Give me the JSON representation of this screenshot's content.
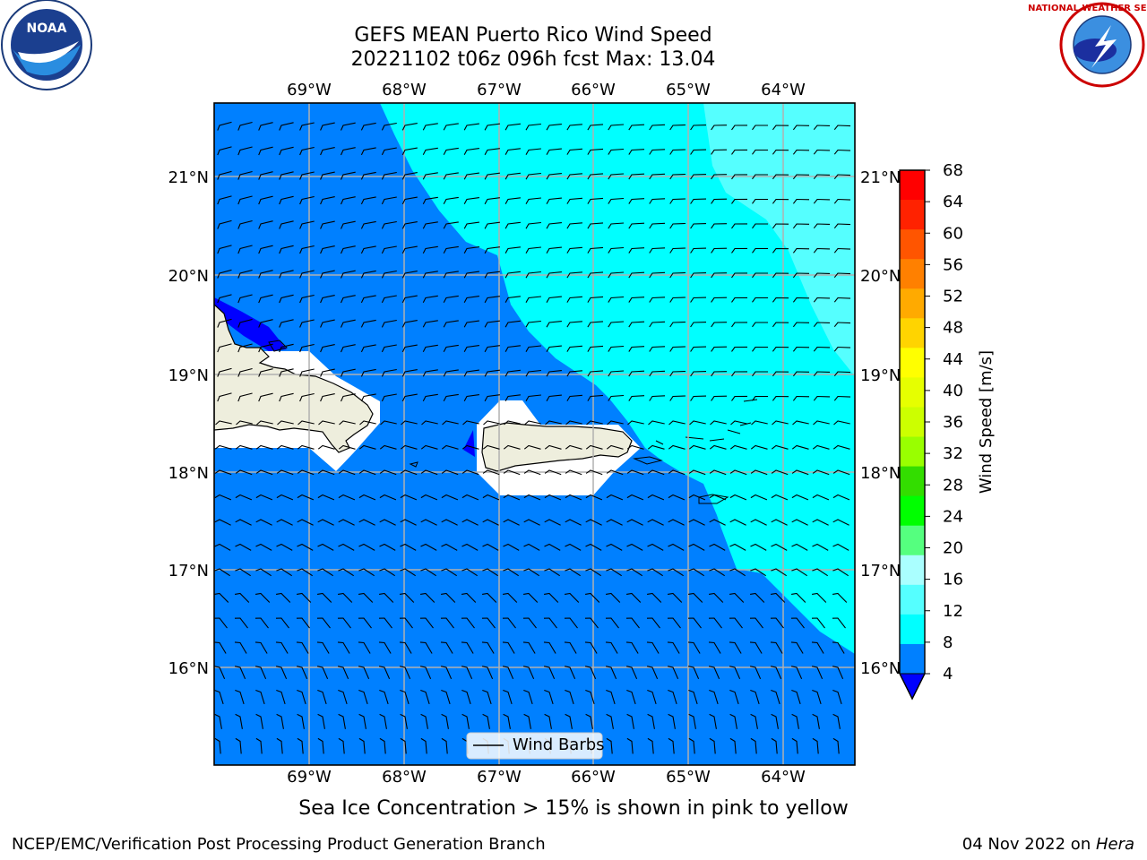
{
  "title_line1": "GEFS MEAN Puerto Rico Wind Speed",
  "title_line2": "20221102 t06z 096h fcst   Max: 13.04",
  "subtitle": "Sea Ice Concentration > 15% is shown in pink to yellow",
  "footer_left": "NCEP/EMC/Verification Post Processing Product Generation Branch",
  "footer_date": "04 Nov 2022 on ",
  "footer_machine": "Hera",
  "legend_label": "Wind Barbs",
  "colorbar": {
    "label": "Wind Speed [m/s]",
    "ticks": [
      "68",
      "64",
      "60",
      "56",
      "52",
      "48",
      "44",
      "40",
      "36",
      "32",
      "28",
      "24",
      "20",
      "16",
      "12",
      "8",
      "4"
    ],
    "colors": [
      "#ff0000",
      "#ff2200",
      "#ff5500",
      "#ff8000",
      "#ffaa00",
      "#ffd400",
      "#ffff00",
      "#e6ff00",
      "#ccff00",
      "#99ff00",
      "#33dd00",
      "#00ff00",
      "#55ff7f",
      "#aaffff",
      "#55ffff",
      "#00ffff",
      "#0080ff"
    ],
    "extend_color": "#0000ff"
  },
  "map": {
    "lon_labels": [
      "69°W",
      "68°W",
      "67°W",
      "66°W",
      "65°W",
      "64°W"
    ],
    "lat_labels": [
      "21°N",
      "20°N",
      "19°N",
      "18°N",
      "17°N",
      "16°N"
    ],
    "colors": {
      "low": "#0080ff",
      "mid": "#00ffff",
      "high": "#55ffff",
      "dark": "#0000ff",
      "land": "#eeeedd",
      "mask": "#ffffff"
    }
  },
  "logos": {
    "left": "NOAA",
    "right_top": "NATIONAL WEATHER SERVICE"
  }
}
